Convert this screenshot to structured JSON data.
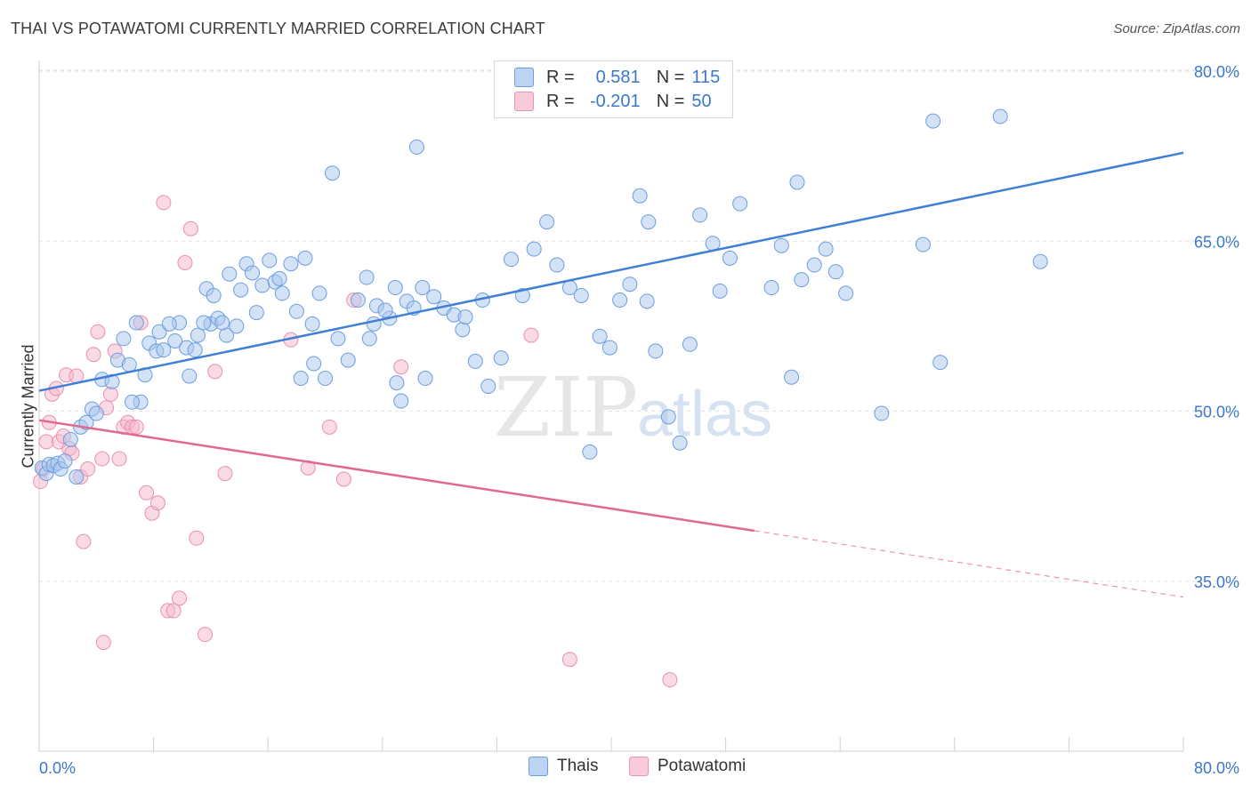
{
  "title": "THAI VS POTAWATOMI CURRENTLY MARRIED CORRELATION CHART",
  "source": "Source: ZipAtlas.com",
  "watermark": {
    "zip": "ZIP",
    "atlas": "atlas"
  },
  "legend": {
    "rows": [
      {
        "r_label": "R =",
        "r_value": "0.581",
        "n_label": "N =",
        "n_value": "115",
        "color": "#a9c6ee"
      },
      {
        "r_label": "R =",
        "r_value": "-0.201",
        "n_label": "N =",
        "n_value": "50",
        "color": "#f6b8cc"
      }
    ]
  },
  "bottom_legend": {
    "thais": "Thais",
    "potawatomi": "Potawatomi"
  },
  "chart_data": {
    "type": "scatter",
    "title": "THAI VS POTAWATOMI CURRENTLY MARRIED CORRELATION CHART",
    "xlabel": "",
    "ylabel": "Currently Married",
    "xlim": [
      0,
      80
    ],
    "ylim": [
      20,
      82
    ],
    "x_tick_labels": [
      "0.0%",
      "80.0%"
    ],
    "y_ticks": [
      35,
      50,
      65,
      80
    ],
    "y_tick_labels": [
      "35.0%",
      "50.0%",
      "65.0%",
      "80.0%"
    ],
    "colors": {
      "thais": "#3f7fd6",
      "thais_fill": "#a9c6ee",
      "potawatomi": "#e2688f",
      "potawatomi_fill": "#f6b8cc"
    },
    "series": [
      {
        "name": "Thais",
        "r": 0.581,
        "n": 115,
        "trend": {
          "x": [
            0,
            80
          ],
          "y": [
            51.8,
            72.8
          ],
          "solid_until": 80
        },
        "points": [
          [
            0.2,
            45.0
          ],
          [
            0.5,
            44.5
          ],
          [
            0.7,
            45.3
          ],
          [
            1.0,
            45.2
          ],
          [
            1.3,
            45.4
          ],
          [
            1.5,
            44.9
          ],
          [
            1.8,
            45.6
          ],
          [
            2.2,
            47.5
          ],
          [
            2.6,
            44.2
          ],
          [
            2.9,
            48.6
          ],
          [
            3.3,
            49.0
          ],
          [
            3.7,
            50.2
          ],
          [
            4.0,
            49.8
          ],
          [
            4.4,
            52.8
          ],
          [
            5.1,
            52.6
          ],
          [
            5.5,
            54.5
          ],
          [
            6.3,
            54.1
          ],
          [
            5.9,
            56.4
          ],
          [
            7.1,
            50.8
          ],
          [
            6.5,
            50.8
          ],
          [
            7.7,
            56.0
          ],
          [
            8.2,
            55.3
          ],
          [
            8.7,
            55.4
          ],
          [
            9.5,
            56.2
          ],
          [
            10.3,
            55.6
          ],
          [
            11.1,
            56.7
          ],
          [
            12.0,
            57.7
          ],
          [
            12.5,
            58.2
          ],
          [
            13.1,
            56.7
          ],
          [
            13.8,
            57.5
          ],
          [
            11.7,
            60.8
          ],
          [
            13.3,
            62.1
          ],
          [
            14.5,
            63.0
          ],
          [
            14.1,
            60.7
          ],
          [
            15.6,
            61.1
          ],
          [
            16.5,
            61.4
          ],
          [
            17.0,
            60.4
          ],
          [
            18.0,
            58.8
          ],
          [
            18.6,
            63.5
          ],
          [
            19.1,
            57.7
          ],
          [
            19.6,
            60.4
          ],
          [
            20.0,
            52.9
          ],
          [
            20.9,
            56.4
          ],
          [
            21.6,
            54.5
          ],
          [
            22.3,
            59.8
          ],
          [
            23.1,
            56.4
          ],
          [
            23.4,
            57.7
          ],
          [
            24.5,
            58.2
          ],
          [
            24.9,
            60.9
          ],
          [
            25.7,
            59.7
          ],
          [
            26.2,
            59.1
          ],
          [
            26.8,
            60.9
          ],
          [
            27.6,
            60.1
          ],
          [
            28.3,
            59.1
          ],
          [
            29.0,
            58.5
          ],
          [
            29.6,
            57.2
          ],
          [
            30.5,
            54.4
          ],
          [
            31.4,
            52.2
          ],
          [
            32.3,
            54.7
          ],
          [
            33.0,
            63.4
          ],
          [
            33.8,
            60.2
          ],
          [
            34.6,
            64.3
          ],
          [
            35.5,
            66.7
          ],
          [
            36.2,
            62.9
          ],
          [
            37.1,
            60.9
          ],
          [
            37.9,
            60.2
          ],
          [
            38.5,
            46.4
          ],
          [
            39.2,
            56.6
          ],
          [
            39.9,
            55.6
          ],
          [
            40.6,
            59.8
          ],
          [
            41.3,
            61.2
          ],
          [
            42.0,
            69.0
          ],
          [
            42.5,
            59.7
          ],
          [
            43.1,
            55.3
          ],
          [
            44.0,
            49.5
          ],
          [
            44.8,
            47.2
          ],
          [
            45.5,
            55.9
          ],
          [
            46.2,
            67.3
          ],
          [
            47.1,
            64.8
          ],
          [
            47.6,
            60.6
          ],
          [
            48.3,
            63.5
          ],
          [
            49.0,
            68.3
          ],
          [
            51.2,
            60.9
          ],
          [
            51.9,
            64.6
          ],
          [
            52.6,
            53.0
          ],
          [
            53.3,
            61.6
          ],
          [
            54.2,
            62.9
          ],
          [
            55.0,
            64.3
          ],
          [
            55.7,
            62.3
          ],
          [
            56.4,
            60.4
          ],
          [
            22.9,
            61.8
          ],
          [
            23.6,
            59.3
          ],
          [
            24.2,
            58.9
          ],
          [
            25.3,
            50.9
          ],
          [
            16.1,
            63.3
          ],
          [
            17.6,
            63.0
          ],
          [
            18.3,
            52.9
          ],
          [
            10.5,
            53.1
          ],
          [
            10.9,
            55.4
          ],
          [
            9.8,
            57.8
          ],
          [
            8.4,
            57.0
          ],
          [
            7.4,
            53.2
          ],
          [
            6.8,
            57.8
          ],
          [
            15.2,
            58.7
          ],
          [
            12.8,
            57.8
          ],
          [
            14.9,
            62.2
          ],
          [
            27.0,
            52.9
          ],
          [
            58.9,
            49.8
          ],
          [
            61.8,
            64.7
          ],
          [
            63.0,
            54.3
          ],
          [
            62.5,
            75.6
          ],
          [
            20.5,
            71.0
          ],
          [
            26.4,
            73.3
          ],
          [
            42.6,
            66.7
          ],
          [
            53.0,
            70.2
          ],
          [
            67.2,
            76.0
          ],
          [
            70.0,
            63.2
          ],
          [
            9.1,
            57.7
          ],
          [
            11.5,
            57.8
          ],
          [
            12.2,
            60.2
          ],
          [
            16.8,
            61.7
          ],
          [
            19.2,
            54.2
          ],
          [
            25.0,
            52.5
          ],
          [
            29.8,
            58.3
          ],
          [
            31.0,
            59.8
          ]
        ]
      },
      {
        "name": "Potawatomi",
        "r": -0.201,
        "n": 50,
        "trend": {
          "x": [
            0,
            80
          ],
          "y": [
            49.2,
            33.6
          ],
          "solid_until": 50
        },
        "points": [
          [
            0.1,
            43.8
          ],
          [
            0.3,
            44.9
          ],
          [
            0.5,
            47.3
          ],
          [
            0.7,
            49.0
          ],
          [
            0.9,
            51.5
          ],
          [
            1.2,
            52.0
          ],
          [
            1.4,
            47.3
          ],
          [
            1.7,
            47.8
          ],
          [
            1.9,
            53.2
          ],
          [
            2.1,
            46.7
          ],
          [
            2.3,
            46.3
          ],
          [
            2.6,
            53.1
          ],
          [
            2.9,
            44.2
          ],
          [
            3.1,
            38.5
          ],
          [
            3.4,
            44.9
          ],
          [
            3.8,
            55.0
          ],
          [
            4.1,
            57.0
          ],
          [
            4.4,
            45.8
          ],
          [
            4.7,
            50.3
          ],
          [
            5.0,
            51.5
          ],
          [
            5.3,
            55.3
          ],
          [
            5.6,
            45.8
          ],
          [
            5.9,
            48.6
          ],
          [
            6.2,
            49.0
          ],
          [
            6.5,
            48.6
          ],
          [
            6.8,
            48.6
          ],
          [
            7.1,
            57.8
          ],
          [
            7.5,
            42.8
          ],
          [
            7.9,
            41.0
          ],
          [
            8.3,
            41.9
          ],
          [
            8.7,
            68.4
          ],
          [
            9.0,
            32.4
          ],
          [
            9.4,
            32.4
          ],
          [
            9.8,
            33.5
          ],
          [
            10.2,
            63.1
          ],
          [
            10.6,
            66.1
          ],
          [
            11.0,
            38.8
          ],
          [
            11.6,
            30.3
          ],
          [
            12.3,
            53.5
          ],
          [
            13.0,
            44.5
          ],
          [
            17.6,
            56.3
          ],
          [
            18.8,
            45.0
          ],
          [
            20.3,
            48.6
          ],
          [
            21.3,
            44.0
          ],
          [
            22.0,
            59.8
          ],
          [
            25.3,
            53.9
          ],
          [
            34.4,
            56.7
          ],
          [
            37.1,
            28.1
          ],
          [
            44.1,
            26.3
          ],
          [
            4.5,
            29.6
          ]
        ]
      }
    ]
  }
}
